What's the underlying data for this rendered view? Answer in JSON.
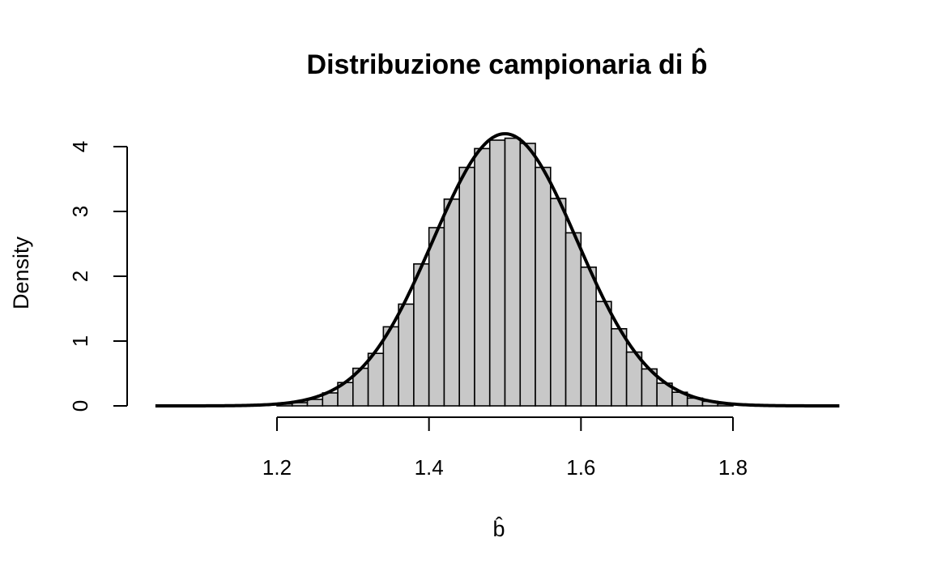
{
  "chart_data": {
    "type": "bar",
    "title": "Distribuzione campionaria di b̂",
    "xlabel": "b̂",
    "ylabel": "Density",
    "xlim": [
      1.04,
      1.94
    ],
    "ylim": [
      0,
      4.2
    ],
    "x_ticks": [
      1.2,
      1.4,
      1.6,
      1.8
    ],
    "y_ticks": [
      0,
      1,
      2,
      3,
      4
    ],
    "grid": false,
    "histogram": {
      "bin_width": 0.02,
      "bins": [
        {
          "x0": 1.2,
          "x1": 1.22,
          "density": 0.03
        },
        {
          "x0": 1.22,
          "x1": 1.24,
          "density": 0.05
        },
        {
          "x0": 1.24,
          "x1": 1.26,
          "density": 0.1
        },
        {
          "x0": 1.26,
          "x1": 1.28,
          "density": 0.2
        },
        {
          "x0": 1.28,
          "x1": 1.3,
          "density": 0.36
        },
        {
          "x0": 1.3,
          "x1": 1.32,
          "density": 0.58
        },
        {
          "x0": 1.32,
          "x1": 1.34,
          "density": 0.81
        },
        {
          "x0": 1.34,
          "x1": 1.36,
          "density": 1.22
        },
        {
          "x0": 1.36,
          "x1": 1.38,
          "density": 1.57
        },
        {
          "x0": 1.38,
          "x1": 1.4,
          "density": 2.19
        },
        {
          "x0": 1.4,
          "x1": 1.42,
          "density": 2.75
        },
        {
          "x0": 1.42,
          "x1": 1.44,
          "density": 3.19
        },
        {
          "x0": 1.44,
          "x1": 1.46,
          "density": 3.68
        },
        {
          "x0": 1.46,
          "x1": 1.48,
          "density": 3.97
        },
        {
          "x0": 1.48,
          "x1": 1.5,
          "density": 4.1
        },
        {
          "x0": 1.5,
          "x1": 1.52,
          "density": 4.13
        },
        {
          "x0": 1.52,
          "x1": 1.54,
          "density": 4.05
        },
        {
          "x0": 1.54,
          "x1": 1.56,
          "density": 3.68
        },
        {
          "x0": 1.56,
          "x1": 1.58,
          "density": 3.2
        },
        {
          "x0": 1.58,
          "x1": 1.6,
          "density": 2.67
        },
        {
          "x0": 1.6,
          "x1": 1.62,
          "density": 2.14
        },
        {
          "x0": 1.62,
          "x1": 1.64,
          "density": 1.61
        },
        {
          "x0": 1.64,
          "x1": 1.66,
          "density": 1.19
        },
        {
          "x0": 1.66,
          "x1": 1.68,
          "density": 0.83
        },
        {
          "x0": 1.68,
          "x1": 1.7,
          "density": 0.57
        },
        {
          "x0": 1.7,
          "x1": 1.72,
          "density": 0.35
        },
        {
          "x0": 1.72,
          "x1": 1.74,
          "density": 0.21
        },
        {
          "x0": 1.74,
          "x1": 1.76,
          "density": 0.12
        },
        {
          "x0": 1.76,
          "x1": 1.78,
          "density": 0.07
        },
        {
          "x0": 1.78,
          "x1": 1.8,
          "density": 0.03
        }
      ]
    },
    "overlay_curve": {
      "type": "normal_density",
      "mean": 1.5,
      "sd": 0.095,
      "x_range": [
        1.04,
        1.94
      ]
    },
    "colors": {
      "bar_fill": "#c8c8c8",
      "bar_stroke": "#000000",
      "curve": "#000000"
    }
  }
}
